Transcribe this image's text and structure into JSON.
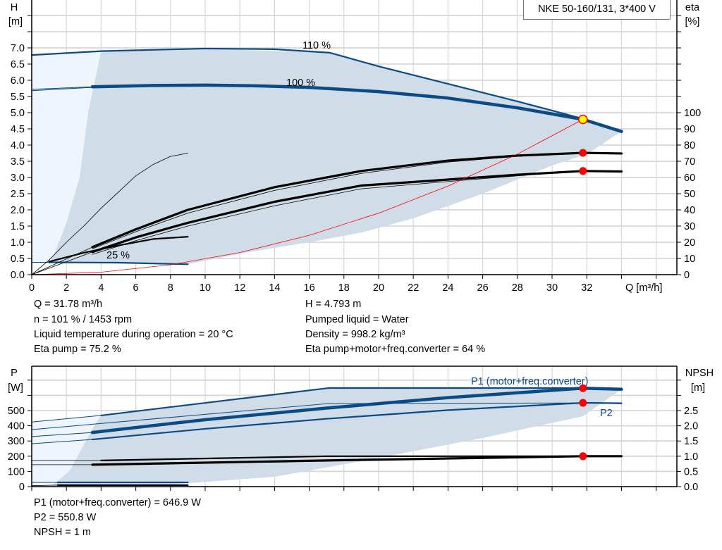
{
  "title": "NKE 50-160/131, 3*400 V",
  "colors": {
    "curve": "#0a4a85",
    "region": "#d0dce8",
    "region_light": "#eef5fc",
    "system": "#ff0000",
    "duty_point": "#ffff00",
    "marker": "#ff0000",
    "grid": "#d6d6d6"
  },
  "chart_data": [
    {
      "type": "line",
      "name_id": "qh",
      "xlabel": "Q [m³/h]",
      "ylabel_left": "H",
      "ylabel_left_unit": "[m]",
      "ylabel_right": "eta",
      "ylabel_right_unit": "[%]",
      "xlim": [
        0,
        37.2
      ],
      "ylim": [
        0,
        8.5
      ],
      "y2lim": [
        0,
        184.8
      ],
      "x_ticks": [
        0,
        2,
        4,
        6,
        8,
        10,
        12,
        14,
        16,
        18,
        20,
        22,
        24,
        26,
        28,
        30,
        32
      ],
      "y_ticks": [
        "0.0",
        "0.5",
        "1.0",
        "1.5",
        "2.0",
        "2.5",
        "3.0",
        "3.5",
        "4.0",
        "4.5",
        "5.0",
        "5.5",
        "6.0",
        "6.5",
        "7.0"
      ],
      "y2_ticks": [
        0,
        10,
        20,
        30,
        40,
        50,
        60,
        70,
        80,
        90,
        100
      ],
      "grid": true,
      "regions": [
        {
          "kind": "light",
          "points": [
            [
              0,
              0.38
            ],
            [
              1.1,
              0.43
            ],
            [
              2.0,
              1.6
            ],
            [
              2.76,
              3.0
            ],
            [
              3.25,
              5.0
            ],
            [
              4.0,
              6.9
            ],
            [
              0,
              6.78
            ]
          ]
        },
        {
          "kind": "dark",
          "points": [
            [
              4.0,
              6.9
            ],
            [
              10,
              6.98
            ],
            [
              17.2,
              6.85
            ],
            [
              20,
              6.43
            ],
            [
              24,
              5.89
            ],
            [
              28,
              5.35
            ],
            [
              32,
              4.78
            ],
            [
              34,
              4.42
            ],
            [
              32,
              3.72
            ],
            [
              30,
              3.37
            ],
            [
              26,
              2.5
            ],
            [
              22,
              1.74
            ],
            [
              19,
              1.3
            ],
            [
              16,
              1.0
            ],
            [
              12,
              0.65
            ],
            [
              9,
              0.32
            ],
            [
              5,
              0.36
            ],
            [
              1.1,
              0.38
            ],
            [
              2.0,
              1.6
            ],
            [
              2.76,
              3.0
            ],
            [
              3.25,
              5.0
            ]
          ]
        }
      ],
      "series": [
        {
          "label": "110 %",
          "axis": "H",
          "weight": "medium",
          "points": [
            [
              0,
              6.78
            ],
            [
              4,
              6.9
            ],
            [
              10,
              6.98
            ],
            [
              14,
              6.96
            ],
            [
              17.2,
              6.85
            ],
            [
              20,
              6.43
            ],
            [
              24,
              5.89
            ],
            [
              28,
              5.35
            ],
            [
              32,
              4.78
            ],
            [
              34,
              4.42
            ]
          ]
        },
        {
          "label": "100 %",
          "axis": "H",
          "weight": "thick",
          "points": [
            [
              3.5,
              5.8
            ],
            [
              7,
              5.84
            ],
            [
              10,
              5.85
            ],
            [
              13,
              5.83
            ],
            [
              16,
              5.78
            ],
            [
              20,
              5.65
            ],
            [
              24,
              5.45
            ],
            [
              28,
              5.15
            ],
            [
              31.78,
              4.793
            ],
            [
              34,
              4.42
            ]
          ]
        },
        {
          "axis": "H",
          "weight": "thin",
          "points": [
            [
              0,
              5.68
            ],
            [
              3.5,
              5.78
            ]
          ]
        },
        {
          "axis": "H",
          "weight": "thin",
          "points": [
            [
              0,
              5.72
            ],
            [
              3.5,
              5.8
            ]
          ]
        },
        {
          "label": "25 %",
          "axis": "H",
          "weight": "medium",
          "points": [
            [
              1,
              0.38
            ],
            [
              5,
              0.37
            ],
            [
              9,
              0.32
            ]
          ]
        },
        {
          "axis": "H",
          "weight": "thin",
          "points": [
            [
              0,
              0.38
            ],
            [
              1,
              0.38
            ]
          ]
        },
        {
          "axis": "eta",
          "weight": "thick-black",
          "points": [
            [
              3.5,
              17
            ],
            [
              6,
              28
            ],
            [
              9,
              40
            ],
            [
              14,
              54
            ],
            [
              19,
              64
            ],
            [
              24,
              70.4
            ],
            [
              28,
              73.5
            ],
            [
              31.78,
              75.2
            ],
            [
              34,
              74.8
            ]
          ]
        },
        {
          "axis": "eta",
          "weight": "thin-black",
          "points": [
            [
              3.5,
              16
            ],
            [
              6,
              26.5
            ],
            [
              9,
              38
            ],
            [
              14,
              52
            ],
            [
              19,
              62.5
            ],
            [
              24,
              69.5
            ],
            [
              28,
              73
            ],
            [
              31.78,
              75.2
            ]
          ]
        },
        {
          "axis": "eta",
          "weight": "thick-black",
          "points": [
            [
              3.5,
              14
            ],
            [
              6,
              23
            ],
            [
              9,
              32
            ],
            [
              14,
              45
            ],
            [
              19,
              55
            ],
            [
              24,
              58.7
            ],
            [
              28,
              61.7
            ],
            [
              31.78,
              64
            ],
            [
              34,
              63.7
            ]
          ]
        },
        {
          "axis": "eta",
          "weight": "thin-black",
          "points": [
            [
              3.5,
              12.5
            ],
            [
              6,
              21
            ],
            [
              9,
              30
            ],
            [
              14,
              42.5
            ],
            [
              19,
              53
            ],
            [
              24,
              57.5
            ],
            [
              28,
              61
            ],
            [
              31.78,
              64
            ]
          ]
        },
        {
          "axis": "eta",
          "weight": "thin-black",
          "points": [
            [
              0,
              0
            ],
            [
              1,
              9
            ],
            [
              2,
              20
            ],
            [
              3,
              30
            ],
            [
              4,
              41
            ],
            [
              5,
              51
            ],
            [
              6,
              61
            ],
            [
              7,
              68
            ],
            [
              8,
              73
            ],
            [
              9,
              75
            ]
          ]
        },
        {
          "axis": "eta",
          "weight": "medium-black",
          "points": [
            [
              1,
              8
            ],
            [
              3,
              13.5
            ],
            [
              5,
              18
            ],
            [
              7,
              22
            ],
            [
              9,
              23.4
            ]
          ]
        },
        {
          "axis": "eta",
          "weight": "thin-black",
          "points": [
            [
              0,
              0
            ],
            [
              3.5,
              17
            ]
          ]
        },
        {
          "axis": "eta",
          "weight": "thin-black",
          "points": [
            [
              0,
              0
            ],
            [
              3.5,
              14
            ]
          ]
        },
        {
          "axis": "H",
          "weight": "system",
          "points": [
            [
              0,
              0
            ],
            [
              4,
              0.076
            ],
            [
              8,
              0.304
            ],
            [
              12,
              0.683
            ],
            [
              16,
              1.215
            ],
            [
              20,
              1.898
            ],
            [
              24,
              2.734
            ],
            [
              28,
              3.721
            ],
            [
              31.78,
              4.793
            ]
          ]
        }
      ],
      "markers": [
        {
          "kind": "duty",
          "axis": "H",
          "x": 31.78,
          "y": 4.793
        },
        {
          "kind": "dot",
          "axis": "eta",
          "x": 31.78,
          "y": 75.2
        },
        {
          "kind": "dot",
          "axis": "eta",
          "x": 31.78,
          "y": 64
        }
      ]
    },
    {
      "type": "line",
      "name_id": "power",
      "ylabel_left": "P",
      "ylabel_left_unit": "[W]",
      "ylabel_right": "NPSH",
      "ylabel_right_unit": "[m]",
      "xlim": [
        0,
        37.2
      ],
      "ylim": [
        0,
        790
      ],
      "y2lim": [
        0,
        3.95
      ],
      "y_ticks": [
        0,
        100,
        200,
        300,
        400,
        500
      ],
      "y2_ticks": [
        "0.0",
        "0.5",
        "1.0",
        "1.5",
        "2.0",
        "2.5"
      ],
      "grid": true,
      "regions": [
        {
          "kind": "light",
          "points": [
            [
              0,
              0
            ],
            [
              1.1,
              0
            ],
            [
              2.2,
              106
            ],
            [
              3.5,
              380
            ],
            [
              4,
              468
            ],
            [
              0,
              425
            ]
          ]
        },
        {
          "kind": "dark",
          "points": [
            [
              4,
              468
            ],
            [
              17.1,
              648
            ],
            [
              31.78,
              648
            ],
            [
              34,
              640
            ],
            [
              31.78,
              463
            ],
            [
              26,
              320
            ],
            [
              19,
              167
            ],
            [
              14,
              65
            ],
            [
              8,
              14
            ],
            [
              4,
              0
            ],
            [
              1.1,
              0
            ],
            [
              2.2,
              106
            ],
            [
              3.5,
              380
            ]
          ]
        }
      ],
      "series": [
        {
          "label": "P1 (motor+freq.converter)",
          "axis": "P",
          "weight": "medium",
          "points": [
            [
              4,
              468
            ],
            [
              17.1,
              648
            ],
            [
              31.78,
              648
            ],
            [
              34,
              640
            ]
          ]
        },
        {
          "axis": "P",
          "weight": "thin",
          "points": [
            [
              0,
              425
            ],
            [
              4,
              468
            ]
          ]
        },
        {
          "axis": "P",
          "weight": "thick",
          "points": [
            [
              3.5,
              356
            ],
            [
              10,
              440
            ],
            [
              17,
              516
            ],
            [
              24,
              585
            ],
            [
              31.78,
              646.9
            ],
            [
              34,
              640
            ]
          ]
        },
        {
          "axis": "P",
          "weight": "thin",
          "points": [
            [
              0,
              329
            ],
            [
              3.5,
              356
            ]
          ]
        },
        {
          "axis": "P",
          "weight": "thin",
          "points": [
            [
              0,
              375
            ],
            [
              17.1,
              546
            ],
            [
              31.78,
              550
            ],
            [
              34,
              545
            ]
          ]
        },
        {
          "label": "P2",
          "axis": "P",
          "weight": "medium",
          "points": [
            [
              3.5,
              310
            ],
            [
              10,
              380
            ],
            [
              17,
              446
            ],
            [
              24,
              503
            ],
            [
              31.78,
              550.8
            ],
            [
              34,
              548
            ]
          ]
        },
        {
          "axis": "P",
          "weight": "thin",
          "points": [
            [
              0,
              282
            ],
            [
              3.5,
              310
            ]
          ]
        },
        {
          "axis": "P",
          "weight": "medium",
          "points": [
            [
              1.5,
              28
            ],
            [
              9,
              28
            ]
          ]
        },
        {
          "axis": "P",
          "weight": "thin",
          "points": [
            [
              0,
              28
            ],
            [
              1.5,
              28
            ]
          ]
        },
        {
          "axis": "NPSH",
          "weight": "thick-black",
          "points": [
            [
              3.5,
              0.72
            ],
            [
              17,
              0.86
            ],
            [
              31.78,
              1.0
            ],
            [
              34,
              1.0
            ]
          ]
        },
        {
          "axis": "NPSH",
          "weight": "thin-black",
          "points": [
            [
              0,
              0.72
            ],
            [
              3.5,
              0.72
            ]
          ]
        },
        {
          "axis": "NPSH",
          "weight": "medium-black",
          "points": [
            [
              4,
              0.86
            ],
            [
              17,
              1.0
            ],
            [
              34,
              1.0
            ]
          ]
        },
        {
          "axis": "NPSH",
          "weight": "thin-black",
          "points": [
            [
              0,
              0.86
            ],
            [
              4,
              0.86
            ]
          ]
        },
        {
          "axis": "NPSH",
          "weight": "medium-black",
          "points": [
            [
              1.5,
              0.05
            ],
            [
              9,
              0.05
            ]
          ]
        },
        {
          "axis": "NPSH",
          "weight": "thin-black",
          "points": [
            [
              0,
              0.03
            ],
            [
              1.5,
              0.05
            ]
          ]
        }
      ],
      "markers": [
        {
          "kind": "dot",
          "axis": "P",
          "x": 31.78,
          "y": 646.9
        },
        {
          "kind": "dot",
          "axis": "P",
          "x": 31.78,
          "y": 550.8
        },
        {
          "kind": "dot",
          "axis": "NPSH",
          "x": 31.78,
          "y": 1.0
        }
      ]
    }
  ],
  "info_top": {
    "left": [
      "Q = 31.78 m³/h",
      "n = 101 % / 1453 rpm",
      "Liquid temperature during operation = 20 °C",
      "Eta pump = 75.2 %"
    ],
    "right": [
      "H = 4.793 m",
      "Pumped liquid = Water",
      "Density = 998.2 kg/m³",
      "Eta pump+motor+freq.converter = 64 %"
    ]
  },
  "info_bottom": [
    "P1 (motor+freq.converter) = 646.9 W",
    "P2 = 550.8 W",
    "NPSH = 1 m"
  ]
}
